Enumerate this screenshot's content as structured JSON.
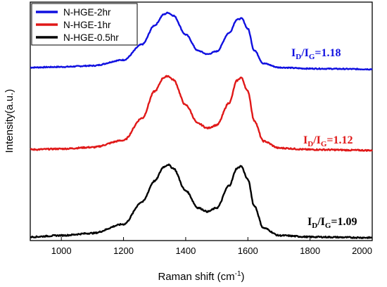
{
  "chart_data": {
    "type": "line",
    "xlabel_main": "Raman shift (cm",
    "xlabel_sup": "-1",
    "xlabel_end": ")",
    "ylabel": "Intensity(a.u.)",
    "xlim": [
      900,
      2000
    ],
    "x_ticks": [
      "1000",
      "1200",
      "1400",
      "1600",
      "1800",
      "2000"
    ],
    "y_ticks_shown": false,
    "legend_position": "top-left",
    "series": [
      {
        "name": "N-HGE-2hr",
        "color": "#1010e0",
        "points": [
          [
            900,
            0.05
          ],
          [
            1000,
            0.06
          ],
          [
            1100,
            0.08
          ],
          [
            1200,
            0.18
          ],
          [
            1260,
            0.45
          ],
          [
            1300,
            0.78
          ],
          [
            1330,
            0.97
          ],
          [
            1343,
            1.0
          ],
          [
            1360,
            0.95
          ],
          [
            1400,
            0.62
          ],
          [
            1440,
            0.34
          ],
          [
            1470,
            0.28
          ],
          [
            1500,
            0.33
          ],
          [
            1540,
            0.65
          ],
          [
            1565,
            0.88
          ],
          [
            1580,
            0.9
          ],
          [
            1600,
            0.72
          ],
          [
            1620,
            0.35
          ],
          [
            1650,
            0.12
          ],
          [
            1700,
            0.05
          ],
          [
            1800,
            0.03
          ],
          [
            2000,
            0.02
          ]
        ],
        "ratio_label": {
          "prefix": "I",
          "sub1": "D",
          "mid": "/I",
          "sub2": "G",
          "value": "=1.18"
        }
      },
      {
        "name": "N-HGE-1hr",
        "color": "#e01818",
        "points": [
          [
            900,
            0.04
          ],
          [
            1000,
            0.05
          ],
          [
            1100,
            0.07
          ],
          [
            1200,
            0.16
          ],
          [
            1260,
            0.45
          ],
          [
            1300,
            0.8
          ],
          [
            1330,
            0.98
          ],
          [
            1343,
            1.0
          ],
          [
            1360,
            0.95
          ],
          [
            1400,
            0.62
          ],
          [
            1440,
            0.38
          ],
          [
            1470,
            0.32
          ],
          [
            1500,
            0.36
          ],
          [
            1540,
            0.65
          ],
          [
            1565,
            0.94
          ],
          [
            1578,
            0.98
          ],
          [
            1600,
            0.8
          ],
          [
            1620,
            0.42
          ],
          [
            1650,
            0.15
          ],
          [
            1700,
            0.06
          ],
          [
            1800,
            0.04
          ],
          [
            2000,
            0.03
          ]
        ],
        "ratio_label": {
          "prefix": "I",
          "sub1": "D",
          "mid": "/I",
          "sub2": "G",
          "value": "=1.12"
        }
      },
      {
        "name": "N-HGE-0.5hr",
        "color": "#000000",
        "points": [
          [
            900,
            0.03
          ],
          [
            1000,
            0.05
          ],
          [
            1100,
            0.08
          ],
          [
            1200,
            0.2
          ],
          [
            1260,
            0.5
          ],
          [
            1300,
            0.78
          ],
          [
            1330,
            0.97
          ],
          [
            1343,
            1.0
          ],
          [
            1360,
            0.95
          ],
          [
            1400,
            0.65
          ],
          [
            1440,
            0.42
          ],
          [
            1470,
            0.37
          ],
          [
            1500,
            0.42
          ],
          [
            1540,
            0.72
          ],
          [
            1565,
            0.95
          ],
          [
            1578,
            0.98
          ],
          [
            1600,
            0.8
          ],
          [
            1620,
            0.45
          ],
          [
            1650,
            0.15
          ],
          [
            1700,
            0.05
          ],
          [
            1800,
            0.03
          ],
          [
            2000,
            0.02
          ]
        ],
        "ratio_label": {
          "prefix": "I",
          "sub1": "D",
          "mid": "/I",
          "sub2": "G",
          "value": "=1.09"
        }
      }
    ]
  }
}
